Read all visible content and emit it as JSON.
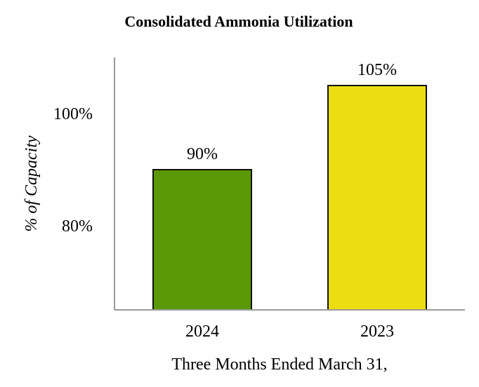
{
  "chart_data": {
    "type": "bar",
    "title": "Consolidated Ammonia Utilization",
    "xlabel": "Three Months Ended March 31,",
    "ylabel": "% of Capacity",
    "categories": [
      "2024",
      "2023"
    ],
    "values": [
      90,
      105
    ],
    "data_labels": [
      "90%",
      "105%"
    ],
    "colors": [
      "#5b9904",
      "#ecdd12"
    ],
    "yticks": [
      80,
      100
    ],
    "ytick_labels": [
      "80%",
      "100%"
    ],
    "ylim": [
      65,
      110
    ],
    "grid": false,
    "legend": "none"
  }
}
